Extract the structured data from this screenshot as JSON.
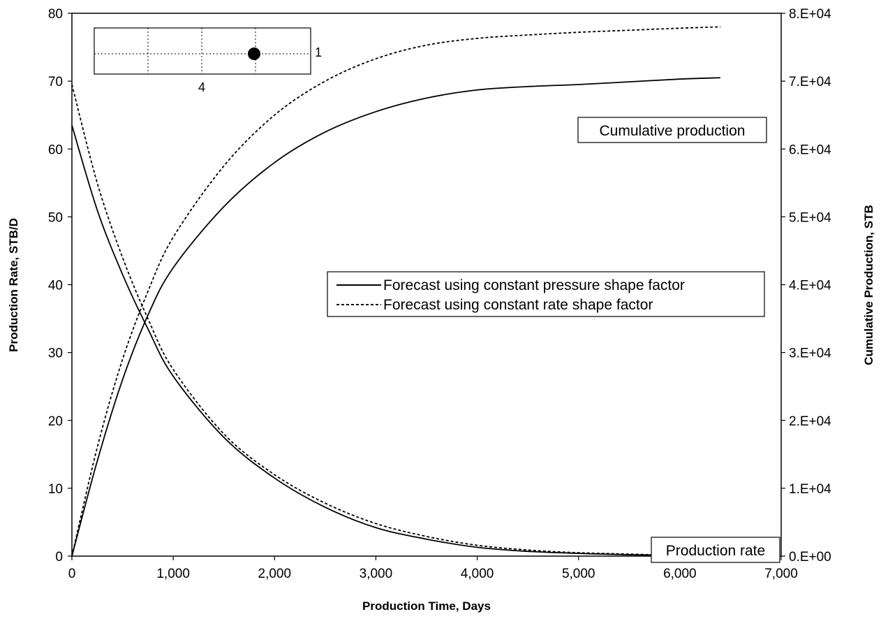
{
  "chart_data": {
    "type": "line",
    "title": "",
    "xlabel": "Production Time, Days",
    "ylabel": "Production Rate, STB/D",
    "y2label": "Cumulative Production, STB",
    "xlim": [
      0,
      7000
    ],
    "ylim": [
      0,
      80
    ],
    "y2lim": [
      0,
      80000
    ],
    "grid": false,
    "x_tick_labels": [
      "0",
      "1,000",
      "2,000",
      "3,000",
      "4,000",
      "5,000",
      "6,000",
      "7,000"
    ],
    "y_tick_labels": [
      "0",
      "10",
      "20",
      "30",
      "40",
      "50",
      "60",
      "70",
      "80"
    ],
    "y2_tick_labels": [
      "0.E+00",
      "1.E+04",
      "2.E+04",
      "3.E+04",
      "4.E+04",
      "5.E+04",
      "6.E+04",
      "7.E+04",
      "8.E+04"
    ],
    "legend": {
      "position": "center-right",
      "entries": [
        {
          "label": "Forecast using constant pressure shape factor",
          "style": "solid"
        },
        {
          "label": "Forecast using constant rate shape factor",
          "style": "dashed"
        }
      ]
    },
    "annotations": {
      "cumulative": "Cumulative production",
      "rate": "Production rate",
      "inset_right": "1",
      "inset_bottom": "4"
    },
    "series": [
      {
        "style": "solid",
        "axis": "left",
        "x": [
          0,
          250,
          500,
          750,
          1000,
          1500,
          2000,
          2500,
          3000,
          3500,
          4000,
          4500,
          5000,
          5500,
          6000,
          6400
        ],
        "y": [
          63.5,
          51,
          41.5,
          33.5,
          26.5,
          17.5,
          11.5,
          7.2,
          4.2,
          2.5,
          1.3,
          0.7,
          0.4,
          0.2,
          0.1,
          0
        ]
      },
      {
        "style": "dashed",
        "axis": "left",
        "x": [
          0,
          250,
          500,
          750,
          1000,
          1500,
          2000,
          2500,
          3000,
          3500,
          4000,
          4500,
          5000,
          5500,
          6000,
          6400
        ],
        "y": [
          69.5,
          55,
          44,
          35,
          27.5,
          18,
          12,
          7.8,
          4.8,
          2.9,
          1.6,
          0.9,
          0.5,
          0.3,
          0.1,
          0
        ]
      },
      {
        "style": "solid",
        "axis": "right",
        "x": [
          0,
          250,
          500,
          750,
          1000,
          1500,
          2000,
          2500,
          3000,
          3500,
          4000,
          4500,
          5000,
          5500,
          6000,
          6400
        ],
        "y": [
          0,
          14000,
          26000,
          35500,
          42500,
          51500,
          58000,
          62500,
          65500,
          67500,
          68700,
          69200,
          69500,
          69900,
          70300,
          70500
        ]
      },
      {
        "style": "dashed",
        "axis": "right",
        "x": [
          0,
          250,
          500,
          750,
          1000,
          1500,
          2000,
          2500,
          3000,
          3500,
          4000,
          4500,
          5000,
          5500,
          6000,
          6400
        ],
        "y": [
          0,
          16000,
          29000,
          39000,
          47000,
          57500,
          65000,
          70000,
          73300,
          75300,
          76300,
          76800,
          77200,
          77500,
          77800,
          78000
        ]
      }
    ]
  }
}
